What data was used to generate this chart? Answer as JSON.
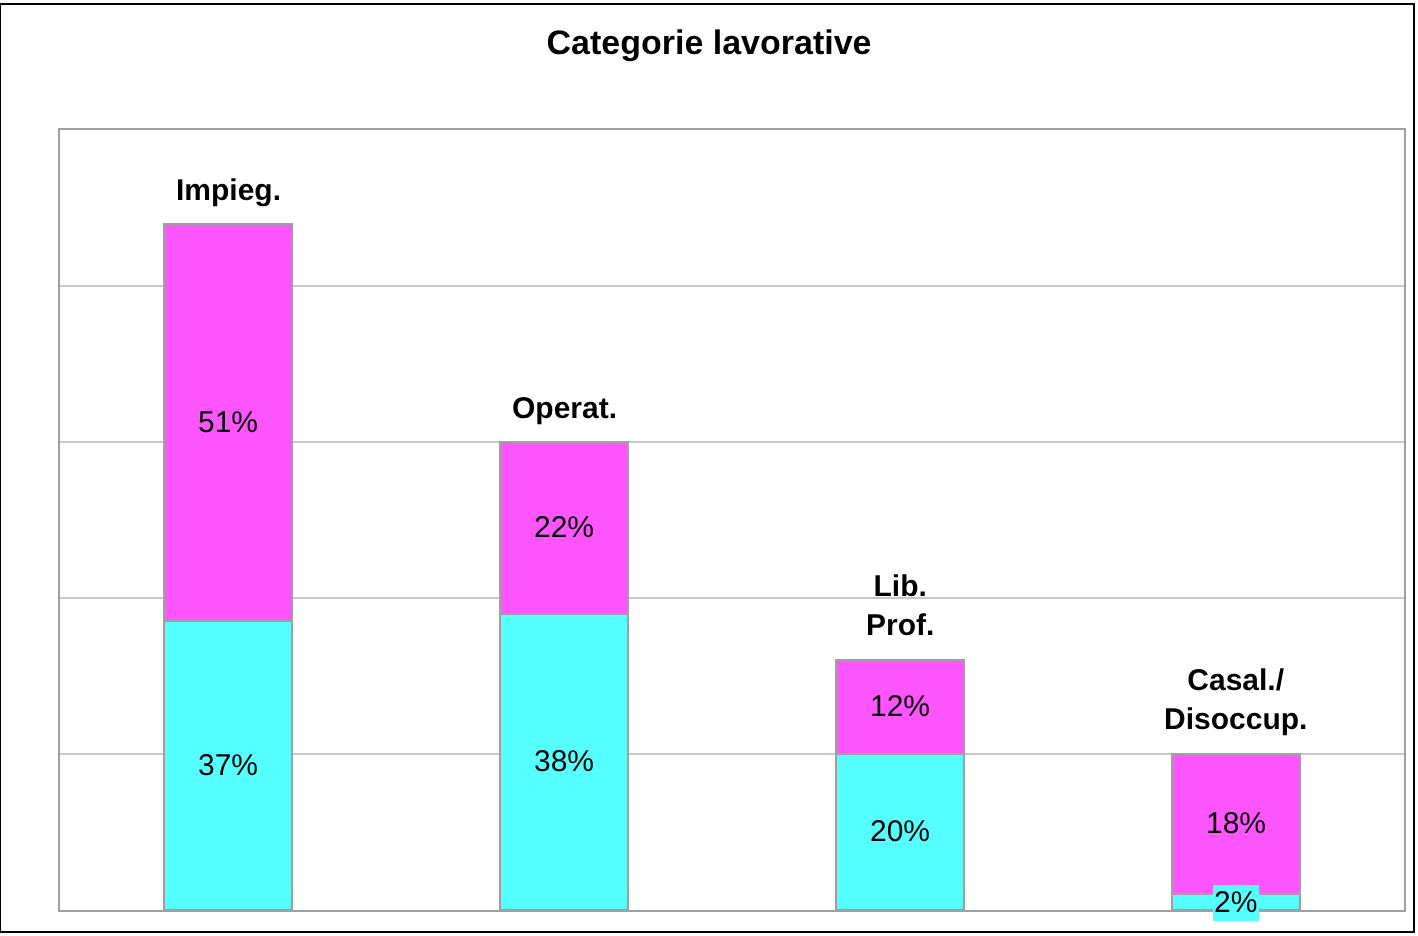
{
  "chart_data": {
    "type": "bar",
    "title": "Categorie lavorative",
    "stacked": true,
    "categories": [
      "Impieg.",
      "Operat.",
      "Lib.\nProf.",
      "Casal./\nDisoccup."
    ],
    "series": [
      {
        "color": "#55ffff",
        "values": [
          37,
          38,
          20,
          2
        ],
        "value_labels": [
          "37%",
          "38%",
          "20%",
          "2%"
        ]
      },
      {
        "color": "#ff55ff",
        "values": [
          51,
          22,
          12,
          18
        ],
        "value_labels": [
          "51%",
          "22%",
          "12%",
          "18%"
        ]
      }
    ],
    "ylim": [
      0,
      100
    ],
    "yticks": [
      {
        "value": 20,
        "label": null
      },
      {
        "value": 40,
        "label": null
      },
      {
        "value": 60,
        "label": null
      },
      {
        "value": 80,
        "label": null
      }
    ],
    "grid": "y",
    "tick_labels": false
  }
}
